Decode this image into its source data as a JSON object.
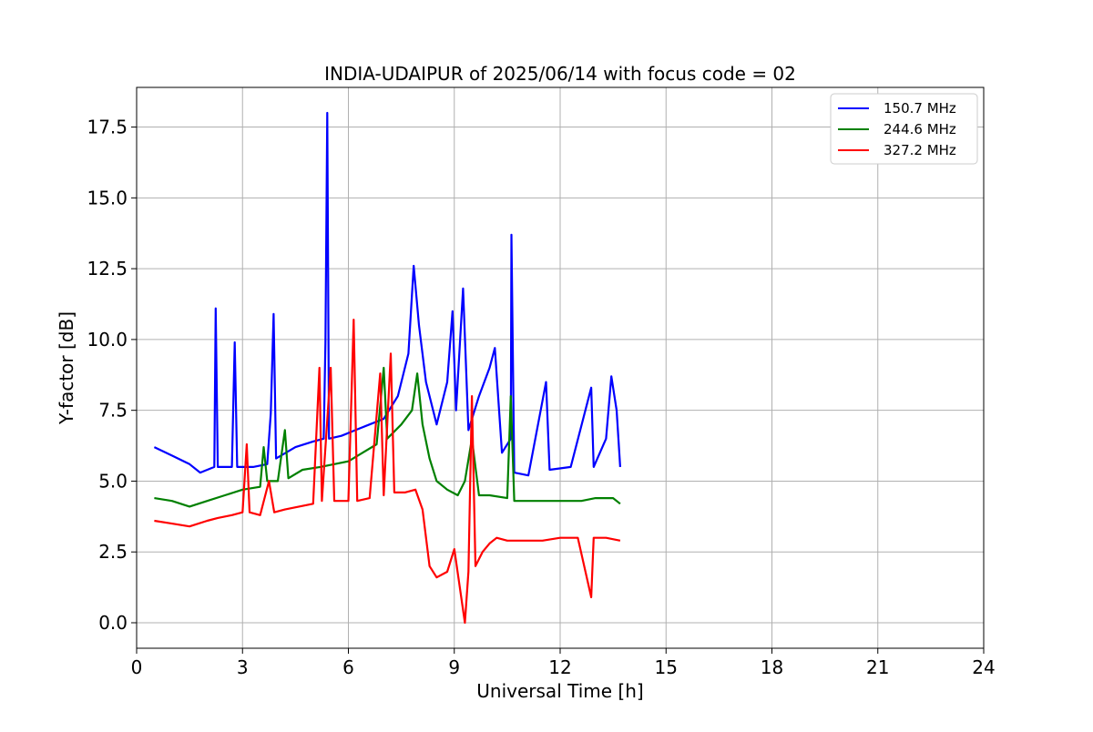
{
  "chart_data": {
    "type": "line",
    "title": "INDIA-UDAIPUR of 2025/06/14 with focus code = 02",
    "xlabel": "Universal Time [h]",
    "ylabel": "Y-factor [dB]",
    "xlim": [
      0,
      24
    ],
    "ylim": [
      -0.9,
      18.9
    ],
    "xticks": [
      0,
      3,
      6,
      9,
      12,
      15,
      18,
      21,
      24
    ],
    "xtick_labels": [
      "0",
      "3",
      "6",
      "9",
      "12",
      "15",
      "18",
      "21",
      "24"
    ],
    "yticks": [
      0,
      2.5,
      5,
      7.5,
      10,
      12.5,
      15,
      17.5
    ],
    "ytick_labels": [
      "0.0",
      "2.5",
      "5.0",
      "7.5",
      "10.0",
      "12.5",
      "15.0",
      "17.5"
    ],
    "grid": true,
    "legend_position": "top-right",
    "series": [
      {
        "name": "150.7 MHz",
        "color": "#0000ff",
        "points": [
          [
            0.5,
            6.2
          ],
          [
            1.0,
            5.9
          ],
          [
            1.5,
            5.6
          ],
          [
            1.8,
            5.3
          ],
          [
            2.2,
            5.5
          ],
          [
            2.24,
            11.1
          ],
          [
            2.3,
            5.5
          ],
          [
            2.7,
            5.5
          ],
          [
            2.78,
            9.9
          ],
          [
            2.85,
            5.5
          ],
          [
            3.3,
            5.5
          ],
          [
            3.7,
            5.6
          ],
          [
            3.8,
            7.4
          ],
          [
            3.88,
            10.9
          ],
          [
            3.95,
            5.8
          ],
          [
            4.5,
            6.2
          ],
          [
            5.0,
            6.4
          ],
          [
            5.3,
            6.5
          ],
          [
            5.35,
            9.9
          ],
          [
            5.4,
            18.0
          ],
          [
            5.45,
            6.5
          ],
          [
            5.8,
            6.6
          ],
          [
            6.2,
            6.8
          ],
          [
            6.6,
            7.0
          ],
          [
            7.0,
            7.2
          ],
          [
            7.4,
            8.0
          ],
          [
            7.7,
            9.5
          ],
          [
            7.85,
            12.6
          ],
          [
            8.0,
            10.5
          ],
          [
            8.2,
            8.5
          ],
          [
            8.5,
            7.0
          ],
          [
            8.8,
            8.5
          ],
          [
            8.95,
            11.0
          ],
          [
            9.05,
            7.5
          ],
          [
            9.25,
            11.8
          ],
          [
            9.4,
            6.8
          ],
          [
            9.7,
            8.0
          ],
          [
            10.0,
            9.0
          ],
          [
            10.15,
            9.7
          ],
          [
            10.35,
            6.0
          ],
          [
            10.6,
            6.5
          ],
          [
            10.62,
            13.7
          ],
          [
            10.7,
            5.3
          ],
          [
            11.1,
            5.2
          ],
          [
            11.6,
            8.5
          ],
          [
            11.7,
            5.4
          ],
          [
            12.3,
            5.5
          ],
          [
            12.88,
            8.3
          ],
          [
            12.95,
            5.5
          ],
          [
            13.3,
            6.5
          ],
          [
            13.45,
            8.7
          ],
          [
            13.6,
            7.5
          ],
          [
            13.7,
            5.5
          ]
        ]
      },
      {
        "name": "244.6 MHz",
        "color": "#008000",
        "points": [
          [
            0.5,
            4.4
          ],
          [
            1.0,
            4.3
          ],
          [
            1.5,
            4.1
          ],
          [
            2.0,
            4.3
          ],
          [
            2.5,
            4.5
          ],
          [
            3.0,
            4.7
          ],
          [
            3.5,
            4.8
          ],
          [
            3.6,
            6.2
          ],
          [
            3.7,
            5.0
          ],
          [
            4.0,
            5.0
          ],
          [
            4.2,
            6.8
          ],
          [
            4.3,
            5.1
          ],
          [
            4.7,
            5.4
          ],
          [
            5.2,
            5.5
          ],
          [
            5.6,
            5.6
          ],
          [
            6.0,
            5.7
          ],
          [
            6.4,
            6.0
          ],
          [
            6.8,
            6.3
          ],
          [
            7.0,
            9.0
          ],
          [
            7.1,
            6.5
          ],
          [
            7.5,
            7.0
          ],
          [
            7.8,
            7.5
          ],
          [
            7.95,
            8.8
          ],
          [
            8.1,
            7.0
          ],
          [
            8.3,
            5.8
          ],
          [
            8.5,
            5.0
          ],
          [
            8.8,
            4.7
          ],
          [
            9.1,
            4.5
          ],
          [
            9.3,
            5.0
          ],
          [
            9.5,
            6.5
          ],
          [
            9.7,
            4.5
          ],
          [
            10.0,
            4.5
          ],
          [
            10.5,
            4.4
          ],
          [
            10.6,
            8.0
          ],
          [
            10.7,
            4.3
          ],
          [
            11.3,
            4.3
          ],
          [
            12.0,
            4.3
          ],
          [
            12.6,
            4.3
          ],
          [
            13.0,
            4.4
          ],
          [
            13.5,
            4.4
          ],
          [
            13.7,
            4.2
          ]
        ]
      },
      {
        "name": "327.2 MHz",
        "color": "#ff0000",
        "points": [
          [
            0.5,
            3.6
          ],
          [
            1.0,
            3.5
          ],
          [
            1.5,
            3.4
          ],
          [
            2.0,
            3.6
          ],
          [
            2.3,
            3.7
          ],
          [
            2.7,
            3.8
          ],
          [
            3.0,
            3.9
          ],
          [
            3.12,
            6.3
          ],
          [
            3.2,
            3.9
          ],
          [
            3.5,
            3.8
          ],
          [
            3.75,
            5.0
          ],
          [
            3.9,
            3.9
          ],
          [
            4.2,
            4.0
          ],
          [
            4.6,
            4.1
          ],
          [
            5.0,
            4.2
          ],
          [
            5.18,
            9.0
          ],
          [
            5.25,
            4.3
          ],
          [
            5.5,
            9.0
          ],
          [
            5.6,
            4.3
          ],
          [
            6.0,
            4.3
          ],
          [
            6.15,
            10.7
          ],
          [
            6.25,
            4.3
          ],
          [
            6.6,
            4.4
          ],
          [
            6.9,
            8.8
          ],
          [
            7.0,
            4.5
          ],
          [
            7.2,
            9.5
          ],
          [
            7.3,
            4.6
          ],
          [
            7.6,
            4.6
          ],
          [
            7.9,
            4.7
          ],
          [
            8.1,
            4.0
          ],
          [
            8.3,
            2.0
          ],
          [
            8.5,
            1.6
          ],
          [
            8.8,
            1.8
          ],
          [
            9.0,
            2.6
          ],
          [
            9.3,
            0.0
          ],
          [
            9.4,
            1.8
          ],
          [
            9.5,
            8.0
          ],
          [
            9.6,
            2.0
          ],
          [
            9.8,
            2.5
          ],
          [
            10.0,
            2.8
          ],
          [
            10.2,
            3.0
          ],
          [
            10.5,
            2.9
          ],
          [
            11.0,
            2.9
          ],
          [
            11.5,
            2.9
          ],
          [
            12.0,
            3.0
          ],
          [
            12.5,
            3.0
          ],
          [
            12.88,
            0.9
          ],
          [
            12.95,
            3.0
          ],
          [
            13.3,
            3.0
          ],
          [
            13.7,
            2.9
          ]
        ]
      }
    ]
  }
}
